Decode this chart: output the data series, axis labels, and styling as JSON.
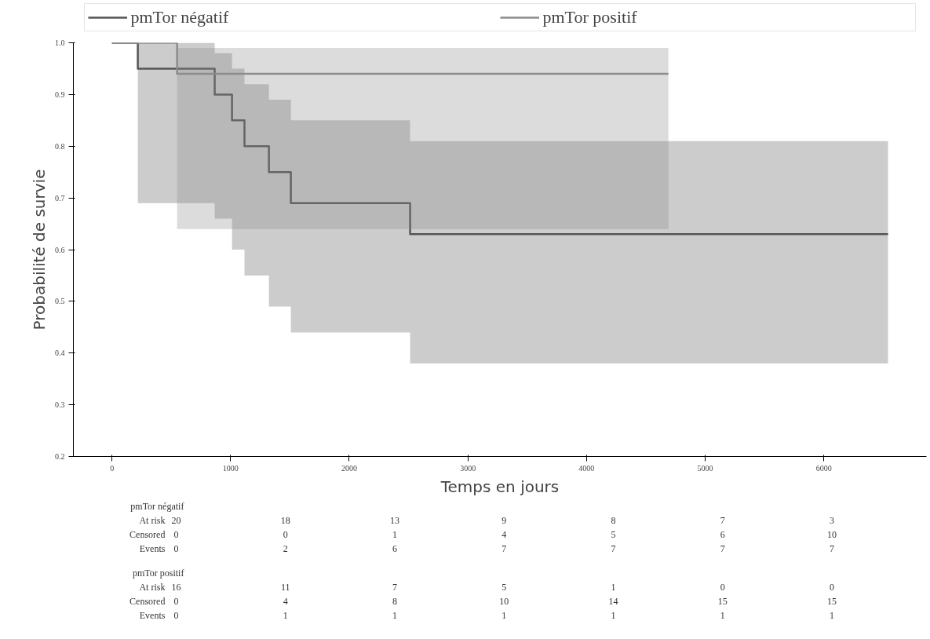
{
  "chart_data": {
    "type": "step",
    "xlabel": "Temps en jours",
    "ylabel": "Probabilité de survie",
    "xlim": [
      -325,
      6865
    ],
    "xticks": [
      0,
      1000,
      2000,
      3000,
      4000,
      5000,
      6000
    ],
    "ylim": [
      0.2,
      1.0
    ],
    "yticks": [
      {
        "value": 0.2,
        "label": "0.2"
      },
      {
        "value": 0.3,
        "label": "0.3"
      },
      {
        "value": 0.4,
        "label": "0.4"
      },
      {
        "value": 0.5,
        "label": "0.5"
      },
      {
        "value": 0.6,
        "label": "0.6"
      },
      {
        "value": 0.7,
        "label": "0.7"
      },
      {
        "value": 0.8,
        "label": "0.8"
      },
      {
        "value": 0.9,
        "label": "0.9"
      },
      {
        "value": 1.0,
        "label": "1.0"
      }
    ],
    "grid": false,
    "legend": "top",
    "marker": "none",
    "line_style": "solid",
    "series": [
      {
        "name": "pmTor négatif",
        "color": "#555555",
        "x": [
          0,
          218,
          866,
          1012,
          1117,
          1323,
          1508,
          2513,
          6541
        ],
        "values": [
          1.0,
          0.95,
          0.9,
          0.85,
          0.8,
          0.75,
          0.69,
          0.63,
          0.63
        ],
        "lower": [
          1.0,
          0.69,
          0.66,
          0.6,
          0.55,
          0.49,
          0.44,
          0.38,
          0.38
        ],
        "upper": [
          1.0,
          1.0,
          0.98,
          0.95,
          0.92,
          0.89,
          0.85,
          0.81,
          0.81
        ]
      },
      {
        "name": "pmTor positif",
        "color": "#8c8c8c",
        "x": [
          0,
          549,
          4690
        ],
        "values": [
          1.0,
          0.94,
          0.94
        ],
        "lower": [
          1.0,
          0.64,
          0.64
        ],
        "upper": [
          1.0,
          0.99,
          0.99
        ]
      }
    ],
    "annotations": [
      "pmTor négatif",
      "At risk",
      "20",
      "18",
      "13",
      "9",
      "8",
      "7",
      "3",
      "Censored",
      "0",
      "0",
      "1",
      "4",
      "5",
      "6",
      "10",
      "Events",
      "0",
      "2",
      "6",
      "7",
      "7",
      "7",
      "7",
      "pmTor positif",
      "At risk",
      "16",
      "11",
      "7",
      "5",
      "1",
      "0",
      "0",
      "Censored",
      "0",
      "4",
      "8",
      "10",
      "14",
      "15",
      "15",
      "Events",
      "0",
      "1",
      "1",
      "1",
      "1",
      "1",
      "1"
    ]
  }
}
